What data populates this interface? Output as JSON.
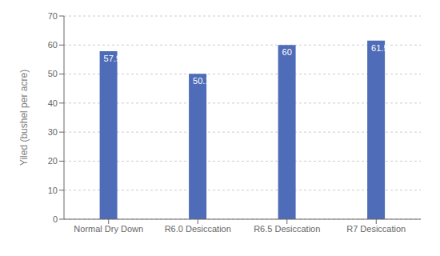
{
  "chart_data": {
    "type": "bar",
    "categories": [
      "Normal Dry Down",
      "R6.0 Desiccation",
      "R6.5 Desiccation",
      "R7 Desiccation"
    ],
    "values": [
      57.9,
      50.1,
      60.0,
      61.5
    ],
    "color": "#4F6CB8",
    "ylabel": "Yiled (bushel per acre)",
    "ylim": [
      0,
      70
    ],
    "yticks": [
      0,
      10,
      20,
      30,
      40,
      50,
      60,
      70
    ],
    "grid": true,
    "data_labels": true
  }
}
